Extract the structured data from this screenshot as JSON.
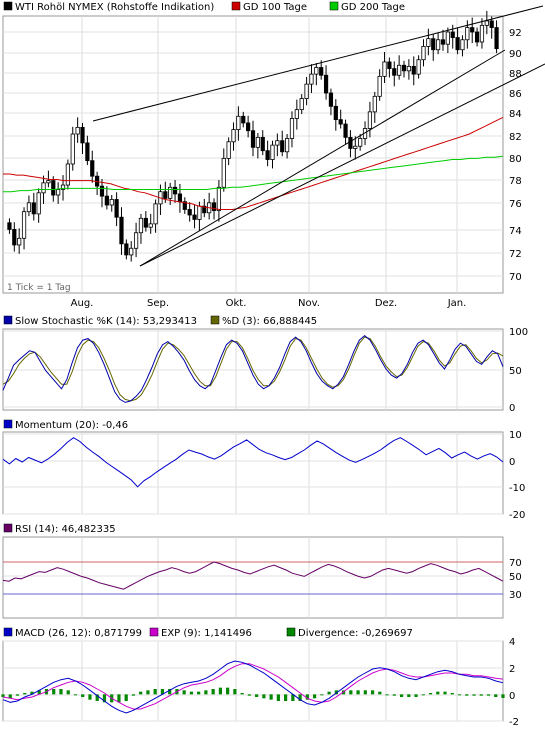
{
  "chart_data": {
    "type": "candlestick-multi-panel",
    "x_months": [
      "Aug.",
      "Sep.",
      "Okt.",
      "Nov.",
      "Dez.",
      "Jan."
    ],
    "panels": [
      {
        "id": "price",
        "legend": [
          {
            "label": "WTI Rohöl NYMEX (Rohstoffe Indikation)",
            "color": "#000000"
          },
          {
            "label": "GD 100 Tage",
            "color": "#cc0000"
          },
          {
            "label": "GD 200 Tage",
            "color": "#00cc00"
          }
        ],
        "note": "1 Tick = 1 Tag",
        "y_ticks": [
          "70",
          "72",
          "74",
          "76",
          "78",
          "80",
          "82",
          "84",
          "86",
          "88",
          "90",
          "92"
        ],
        "ylim": [
          69,
          94
        ],
        "close_series": [
          74.2,
          72.8,
          73.4,
          75.8,
          76.6,
          75.6,
          77.5,
          78.4,
          78.6,
          77.3,
          77.8,
          78.2,
          80.1,
          82.8,
          83.4,
          82.0,
          80.4,
          79.0,
          78.1,
          77.2,
          76.4,
          76.9,
          75.3,
          72.9,
          71.9,
          72.5,
          73.9,
          75.2,
          74.4,
          74.7,
          76.5,
          77.6,
          77.0,
          78.0,
          77.4,
          76.7,
          76.0,
          75.5,
          75.1,
          76.3,
          75.7,
          76.6,
          75.9,
          78.0,
          80.6,
          82.1,
          83.2,
          84.4,
          83.8,
          83.1,
          81.6,
          82.5,
          81.3,
          80.5,
          81.8,
          82.2,
          81.2,
          82.4,
          84.2,
          85.0,
          86.0,
          87.3,
          88.2,
          88.8,
          88.1,
          86.5,
          85.3,
          84.1,
          83.7,
          82.5,
          81.5,
          81.7,
          82.4,
          83.3,
          84.8,
          86.2,
          88.0,
          89.3,
          88.7,
          88.1,
          89.0,
          88.5,
          88.9,
          88.2,
          89.5,
          90.7,
          91.4,
          90.4,
          91.3,
          90.9,
          92.0,
          91.5,
          90.4,
          91.3,
          92.4,
          92.0,
          91.1,
          92.6,
          93.0,
          92.4,
          90.5
        ],
        "gd100": [
          79.2,
          79.2,
          79.1,
          79.1,
          79.0,
          78.9,
          78.8,
          78.7,
          78.7,
          78.6,
          78.6,
          78.6,
          78.6,
          78.6,
          78.5,
          78.4,
          78.3,
          78.1,
          77.9,
          77.8,
          77.6,
          77.5,
          77.3,
          77.1,
          76.9,
          76.8,
          76.7,
          76.6,
          76.5,
          76.3,
          76.2,
          76.1,
          76.0,
          76.0,
          76.0,
          76.1,
          76.2,
          76.4,
          76.6,
          76.8,
          77.0,
          77.2,
          77.4,
          77.6,
          77.8,
          78.0,
          78.2,
          78.4,
          78.6,
          78.8,
          79.0,
          79.2,
          79.4,
          79.6,
          79.8,
          80.0,
          80.2,
          80.4,
          80.6,
          80.8,
          81.0,
          81.2,
          81.4,
          81.6,
          81.8,
          82.0,
          82.2,
          82.4,
          82.6,
          82.8,
          83.1,
          83.4,
          83.7,
          84.0,
          84.3
        ],
        "gd200": [
          77.6,
          77.6,
          77.7,
          77.7,
          77.8,
          77.8,
          77.8,
          77.9,
          77.9,
          77.9,
          77.9,
          77.9,
          77.9,
          77.8,
          77.8,
          77.8,
          77.8,
          77.8,
          77.8,
          77.8,
          77.8,
          77.8,
          77.8,
          77.8,
          77.8,
          77.9,
          77.9,
          78.0,
          78.0,
          78.1,
          78.2,
          78.3,
          78.4,
          78.5,
          78.6,
          78.7,
          78.8,
          78.9,
          79.0,
          79.1,
          79.2,
          79.3,
          79.4,
          79.5,
          79.6,
          79.7,
          79.8,
          79.9,
          80.0,
          80.1,
          80.2,
          80.3,
          80.4,
          80.5,
          80.5,
          80.6,
          80.6,
          80.7,
          80.7,
          80.8
        ]
      },
      {
        "id": "stochastic",
        "legend": [
          {
            "label": "Slow Stochastic %K (14): 53,293413",
            "color": "#0000aa"
          },
          {
            "label": "%D (3): 66,888445",
            "color": "#666600"
          }
        ],
        "y_ticks": [
          "0",
          "50",
          "100"
        ],
        "ylim": [
          0,
          100
        ],
        "k_series": [
          22,
          38,
          55,
          62,
          68,
          74,
          72,
          60,
          48,
          40,
          32,
          24,
          36,
          58,
          78,
          88,
          90,
          84,
          72,
          56,
          38,
          20,
          10,
          6,
          8,
          14,
          22,
          36,
          52,
          70,
          82,
          86,
          80,
          72,
          62,
          48,
          36,
          28,
          24,
          30,
          48,
          66,
          82,
          88,
          84,
          74,
          58,
          42,
          30,
          24,
          28,
          38,
          52,
          70,
          86,
          92,
          86,
          74,
          58,
          44,
          34,
          28,
          24,
          30,
          40,
          56,
          74,
          88,
          94,
          88,
          76,
          62,
          50,
          42,
          38,
          44,
          56,
          72,
          84,
          88,
          82,
          70,
          58,
          50,
          62,
          76,
          84,
          80,
          70,
          60,
          56,
          66,
          74,
          70,
          53
        ],
        "d_series": [
          30,
          34,
          44,
          56,
          64,
          70,
          72,
          66,
          56,
          46,
          38,
          30,
          30,
          46,
          68,
          82,
          88,
          86,
          78,
          64,
          48,
          30,
          16,
          10,
          8,
          10,
          16,
          28,
          42,
          60,
          76,
          84,
          82,
          76,
          68,
          56,
          44,
          34,
          28,
          28,
          40,
          58,
          76,
          86,
          86,
          78,
          64,
          48,
          36,
          28,
          28,
          34,
          46,
          62,
          80,
          90,
          88,
          78,
          64,
          50,
          38,
          30,
          26,
          28,
          36,
          50,
          68,
          84,
          92,
          90,
          80,
          66,
          54,
          46,
          40,
          42,
          52,
          66,
          80,
          86,
          84,
          74,
          62,
          54,
          58,
          70,
          80,
          82,
          74,
          64,
          58,
          62,
          70,
          71,
          67
        ]
      },
      {
        "id": "momentum",
        "legend": [
          {
            "label": "Momentum (20): -0,46",
            "color": "#0000cc"
          }
        ],
        "y_ticks": [
          "-20",
          "-10",
          "0",
          "10"
        ],
        "ylim": [
          -20,
          10
        ],
        "series": [
          0.5,
          -1.2,
          0.8,
          -0.5,
          1.2,
          0.2,
          -0.8,
          0.6,
          2.4,
          4.5,
          6.8,
          8.6,
          7.2,
          5.0,
          3.2,
          1.5,
          -0.5,
          -2.2,
          -3.8,
          -5.5,
          -7.2,
          -9.8,
          -7.5,
          -6.0,
          -4.2,
          -2.6,
          -1.0,
          0.5,
          2.4,
          4.0,
          3.2,
          2.5,
          1.4,
          0.6,
          1.8,
          3.5,
          5.2,
          6.4,
          7.8,
          6.0,
          4.2,
          3.0,
          2.2,
          1.2,
          0.4,
          1.2,
          2.6,
          4.0,
          5.8,
          7.4,
          6.2,
          4.6,
          3.0,
          1.6,
          0.2,
          -0.6,
          0.4,
          1.6,
          2.8,
          4.2,
          6.0,
          7.6,
          8.6,
          7.2,
          5.6,
          4.0,
          2.2,
          3.4,
          4.6,
          3.0,
          1.0,
          2.2,
          3.2,
          1.8,
          0.6,
          1.8,
          2.6,
          1.4,
          -0.5
        ]
      },
      {
        "id": "rsi",
        "legend": [
          {
            "label": "RSI (14): 46,482335",
            "color": "#660066"
          }
        ],
        "y_ticks": [
          "30",
          "50",
          "70"
        ],
        "ylim": [
          10,
          90
        ],
        "series": [
          47,
          46,
          50,
          49,
          52,
          55,
          58,
          57,
          60,
          63,
          61,
          58,
          55,
          52,
          50,
          47,
          44,
          42,
          40,
          38,
          36,
          40,
          44,
          48,
          52,
          55,
          58,
          60,
          63,
          61,
          58,
          56,
          58,
          62,
          66,
          70,
          68,
          65,
          62,
          60,
          57,
          55,
          58,
          61,
          64,
          66,
          63,
          60,
          56,
          54,
          52,
          56,
          60,
          64,
          67,
          65,
          62,
          58,
          55,
          52,
          50,
          52,
          56,
          60,
          62,
          60,
          58,
          56,
          58,
          62,
          65,
          68,
          66,
          63,
          60,
          58,
          55,
          57,
          60,
          62,
          58,
          54,
          50,
          46
        ],
        "levels": [
          30,
          70
        ]
      },
      {
        "id": "macd",
        "legend": [
          {
            "label": "MACD (26, 12): 0,871799",
            "color": "#0000cc"
          },
          {
            "label": "EXP (9): 1,141496",
            "color": "#cc00cc"
          },
          {
            "label": "Divergence: -0,269697",
            "color": "#008800"
          }
        ],
        "y_ticks": [
          "-2",
          "0",
          "2",
          "4"
        ],
        "ylim": [
          -2,
          4
        ],
        "macd": [
          -0.4,
          -0.6,
          -0.5,
          -0.2,
          0.0,
          0.3,
          0.6,
          0.9,
          1.1,
          1.2,
          1.0,
          0.7,
          0.3,
          -0.1,
          -0.5,
          -0.9,
          -1.2,
          -1.4,
          -1.2,
          -0.9,
          -0.6,
          -0.3,
          0.0,
          0.3,
          0.6,
          0.8,
          0.9,
          1.0,
          1.2,
          1.5,
          1.9,
          2.3,
          2.5,
          2.4,
          2.2,
          1.9,
          1.6,
          1.2,
          0.8,
          0.4,
          0.0,
          -0.4,
          -0.7,
          -0.8,
          -0.6,
          -0.3,
          0.1,
          0.5,
          0.9,
          1.3,
          1.6,
          1.9,
          2.0,
          1.9,
          1.7,
          1.4,
          1.2,
          1.1,
          1.3,
          1.5,
          1.7,
          1.8,
          1.7,
          1.5,
          1.4,
          1.3,
          1.3,
          1.2,
          1.0,
          0.87
        ],
        "exp": [
          -0.2,
          -0.3,
          -0.4,
          -0.3,
          -0.2,
          0.0,
          0.2,
          0.5,
          0.7,
          0.9,
          1.0,
          0.9,
          0.7,
          0.4,
          0.1,
          -0.3,
          -0.6,
          -0.9,
          -1.1,
          -1.1,
          -0.9,
          -0.7,
          -0.4,
          -0.1,
          0.2,
          0.5,
          0.7,
          0.8,
          0.9,
          1.1,
          1.4,
          1.8,
          2.1,
          2.3,
          2.3,
          2.1,
          1.9,
          1.6,
          1.3,
          0.9,
          0.5,
          0.1,
          -0.3,
          -0.5,
          -0.6,
          -0.5,
          -0.2,
          0.2,
          0.6,
          1.0,
          1.3,
          1.6,
          1.8,
          1.9,
          1.8,
          1.6,
          1.4,
          1.3,
          1.3,
          1.4,
          1.5,
          1.6,
          1.6,
          1.5,
          1.5,
          1.4,
          1.4,
          1.3,
          1.2,
          1.14
        ]
      }
    ]
  }
}
